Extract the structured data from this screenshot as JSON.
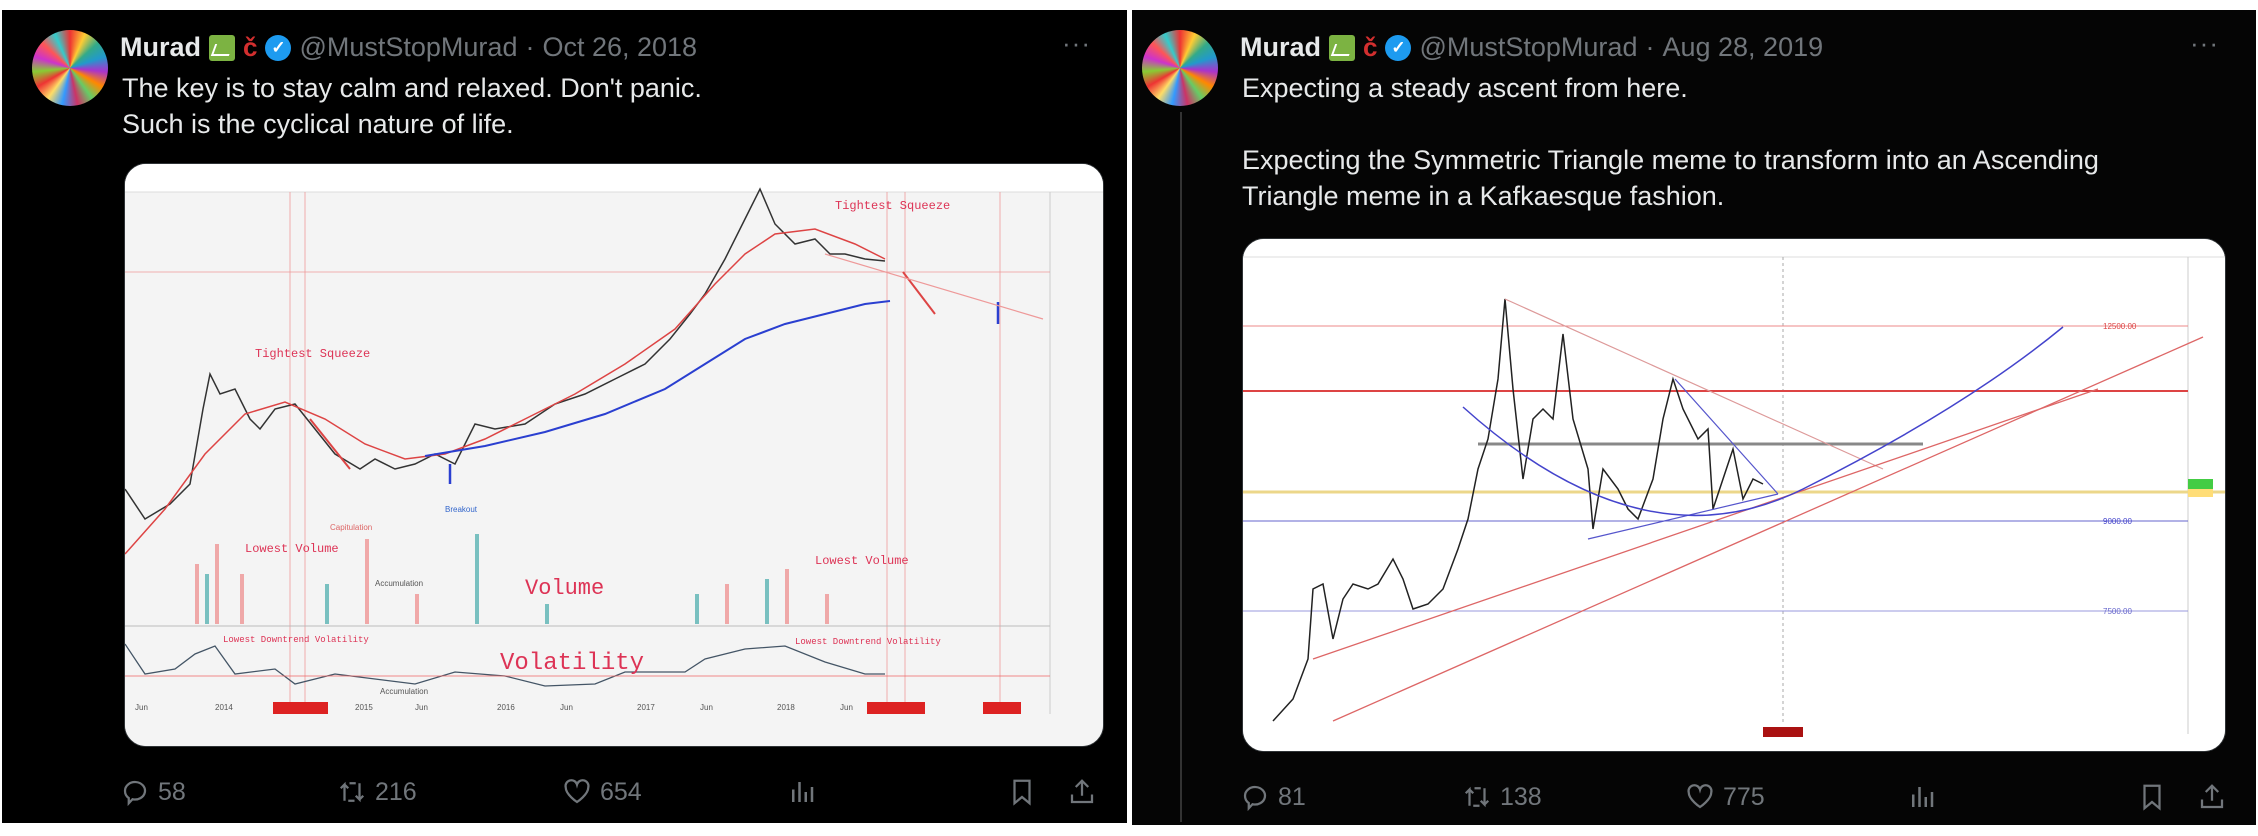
{
  "tweets": [
    {
      "name": "Murad",
      "handle": "@MustStopMurad",
      "separator": "·",
      "date": "Oct 26, 2018",
      "text": "The key is to stay calm and relaxed. Don't panic.\nSuch is the cyclical nature of life.",
      "chart_annotations": {
        "tightest_squeeze": "Tightest Squeeze",
        "lowest_volume": "Lowest Volume",
        "volume": "Volume",
        "volatility": "Volatility",
        "lowest_downtrend_volatility": "Lowest Downtrend Volatility",
        "accumulation": "Accumulation",
        "breakout": "Breakout",
        "capitulation": "Capitulation",
        "x_ticks": [
          "Jun",
          "2014",
          "2015",
          "Jun",
          "2016",
          "Jun",
          "2017",
          "Jun",
          "2018",
          "Jun"
        ]
      },
      "stats": {
        "replies": "58",
        "reposts": "216",
        "likes": "654"
      }
    },
    {
      "name": "Murad",
      "handle": "@MustStopMurad",
      "separator": "·",
      "date": "Aug 28, 2019",
      "text": "Expecting a steady ascent from here.\n\nExpecting the Symmetric Triangle meme to transform into an Ascending Triangle meme in a Kafkaesque fashion.",
      "stats": {
        "replies": "81",
        "reposts": "138",
        "likes": "775"
      }
    }
  ],
  "icons": [
    "verified-badge-icon",
    "chart-emoji-icon",
    "magnet-emoji-icon",
    "more-icon",
    "reply-icon",
    "repost-icon",
    "like-icon",
    "views-icon",
    "bookmark-icon",
    "share-icon"
  ],
  "colors": {
    "background": "#000000",
    "text": "#e7e9ea",
    "muted": "#71767b",
    "verified": "#1d9bf0"
  }
}
